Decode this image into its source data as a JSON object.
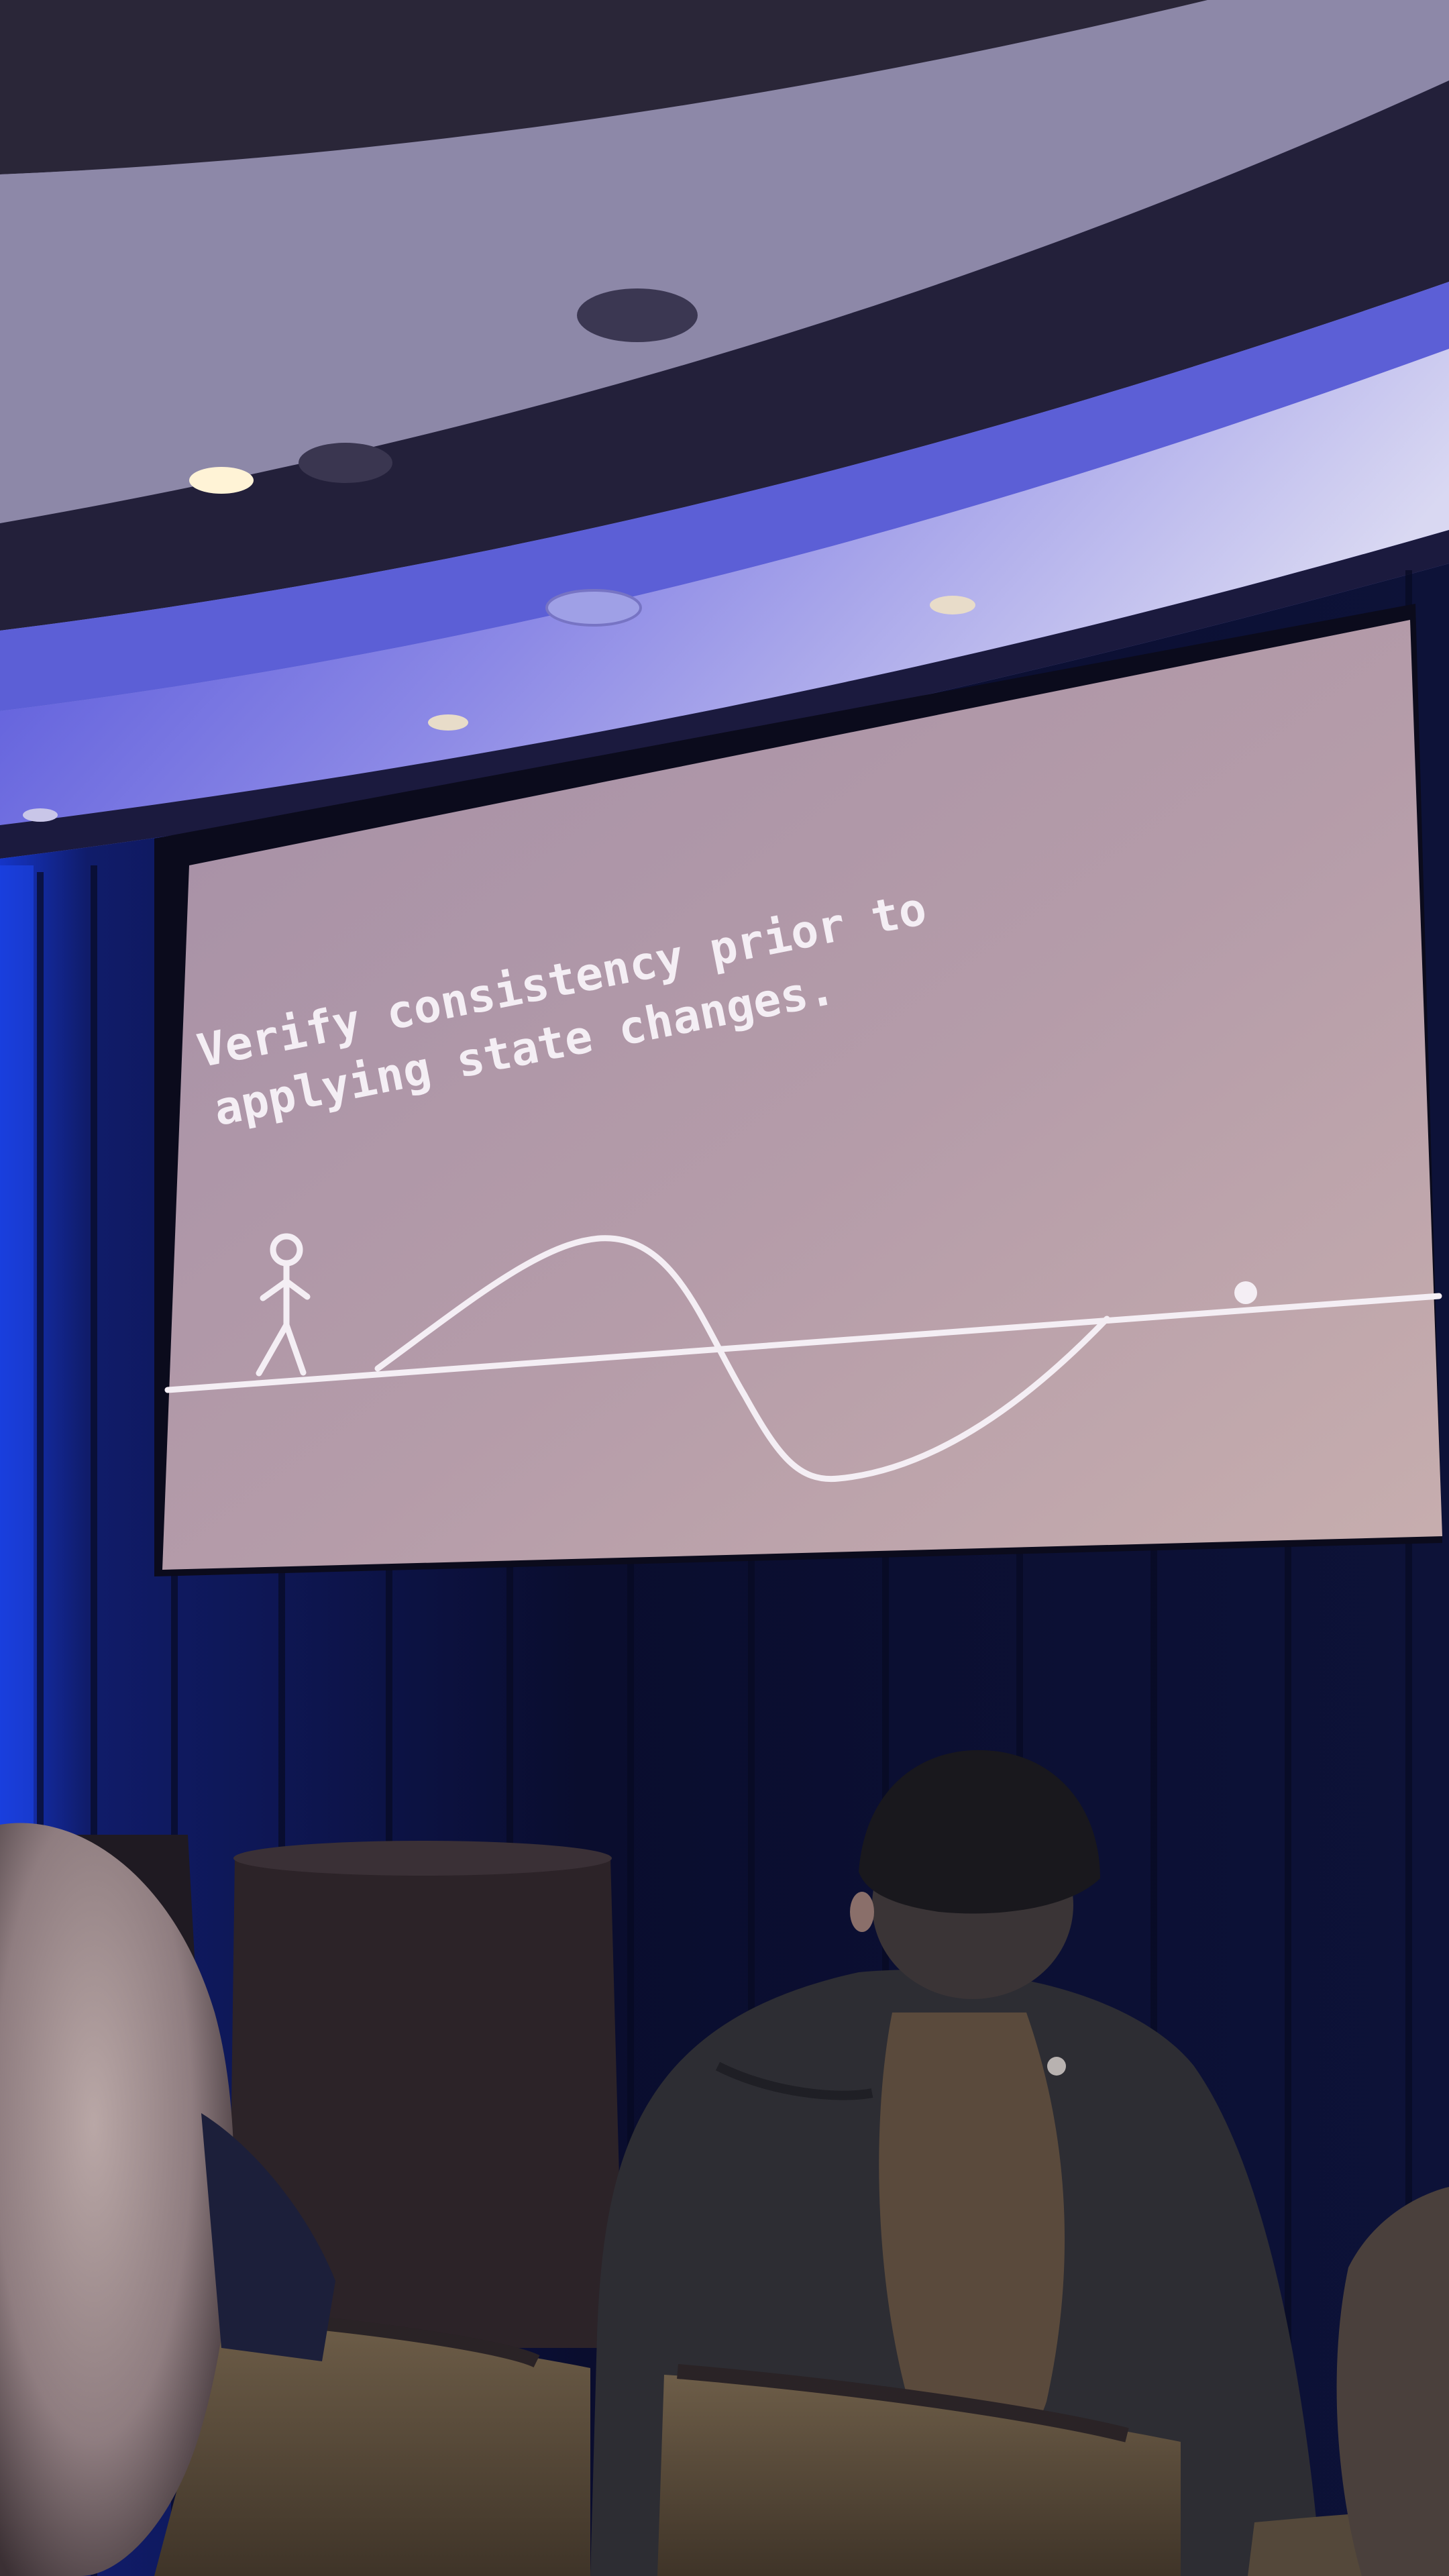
{
  "slide": {
    "line_1": "Verify consistency prior to",
    "line_2": "applying state changes."
  },
  "colors": {
    "ceiling_light": "#b9b6e8",
    "ceiling_blue": "#3f3fd6",
    "curtain": "#0d1030",
    "screen": "#b9a0a8",
    "slide_ink": "#f4eef4"
  },
  "icons": {
    "figure": "stick-figure-icon",
    "ball": "ball-icon"
  }
}
